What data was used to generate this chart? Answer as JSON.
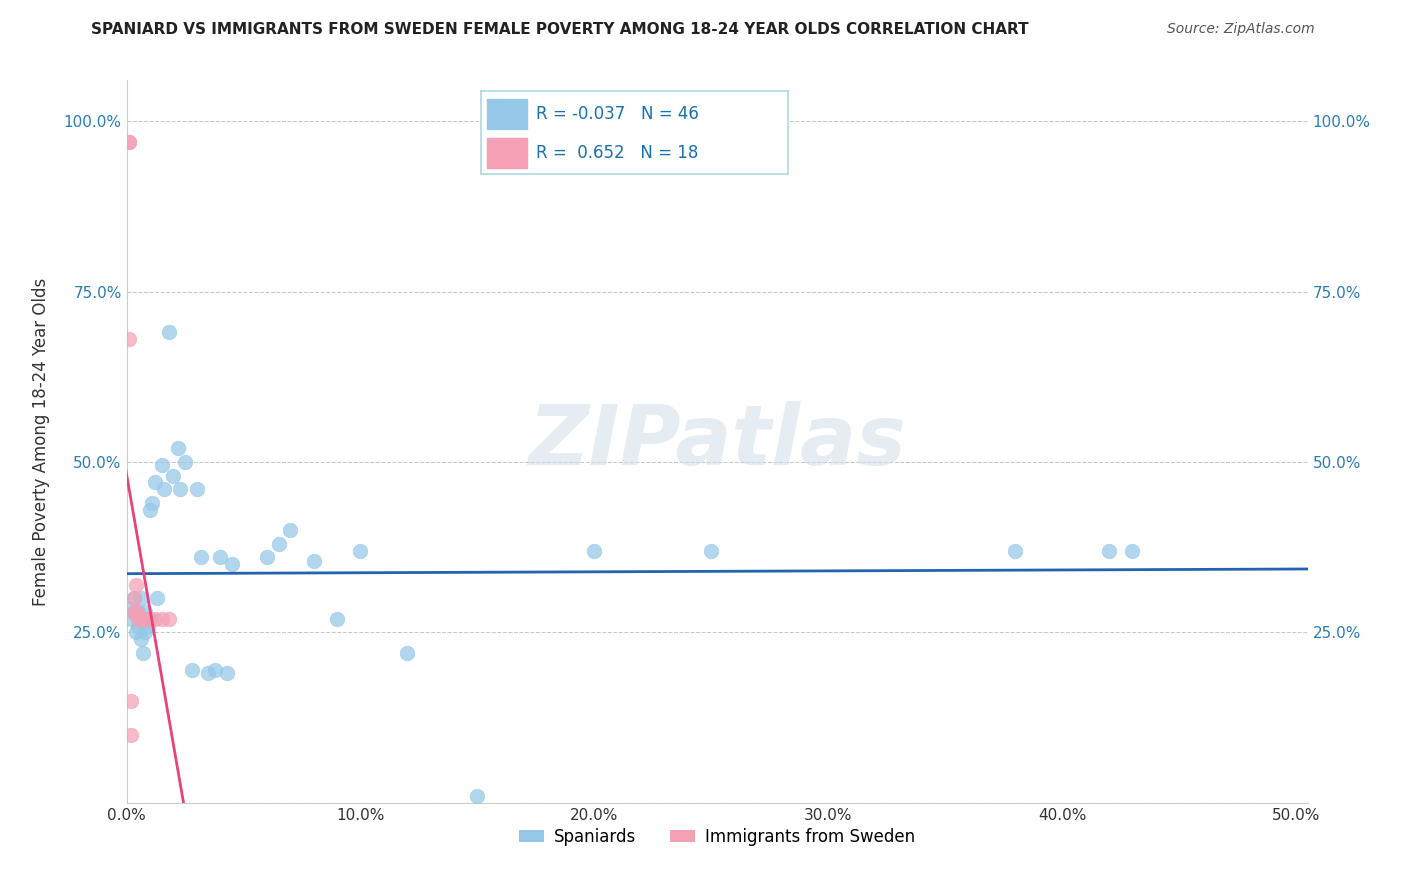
{
  "title": "SPANIARD VS IMMIGRANTS FROM SWEDEN FEMALE POVERTY AMONG 18-24 YEAR OLDS CORRELATION CHART",
  "source": "Source: ZipAtlas.com",
  "ylabel": "Female Poverty Among 18-24 Year Olds",
  "xlim": [
    0.0,
    0.505
  ],
  "ylim": [
    0.0,
    1.06
  ],
  "spaniards_x": [
    0.001,
    0.002,
    0.003,
    0.003,
    0.004,
    0.005,
    0.005,
    0.006,
    0.006,
    0.007,
    0.007,
    0.008,
    0.008,
    0.009,
    0.01,
    0.011,
    0.012,
    0.013,
    0.015,
    0.016,
    0.018,
    0.02,
    0.022,
    0.023,
    0.025,
    0.028,
    0.03,
    0.032,
    0.035,
    0.038,
    0.04,
    0.043,
    0.045,
    0.06,
    0.065,
    0.07,
    0.08,
    0.09,
    0.1,
    0.12,
    0.15,
    0.2,
    0.25,
    0.38,
    0.42,
    0.43
  ],
  "spaniards_y": [
    0.285,
    0.27,
    0.278,
    0.3,
    0.25,
    0.26,
    0.28,
    0.24,
    0.3,
    0.22,
    0.27,
    0.25,
    0.28,
    0.26,
    0.43,
    0.44,
    0.47,
    0.3,
    0.495,
    0.46,
    0.69,
    0.48,
    0.52,
    0.46,
    0.5,
    0.195,
    0.46,
    0.36,
    0.19,
    0.195,
    0.36,
    0.19,
    0.35,
    0.36,
    0.38,
    0.4,
    0.355,
    0.27,
    0.37,
    0.22,
    0.01,
    0.37,
    0.37,
    0.37,
    0.37,
    0.37
  ],
  "immigrants_x": [
    0.001,
    0.001,
    0.001,
    0.002,
    0.002,
    0.003,
    0.003,
    0.004,
    0.004,
    0.005,
    0.006,
    0.007,
    0.008,
    0.009,
    0.01,
    0.012,
    0.015,
    0.018
  ],
  "immigrants_y": [
    0.97,
    0.97,
    0.68,
    0.15,
    0.1,
    0.28,
    0.3,
    0.28,
    0.32,
    0.27,
    0.27,
    0.27,
    0.27,
    0.27,
    0.27,
    0.27,
    0.27,
    0.27
  ],
  "spaniards_color": "#94C7E8",
  "immigrants_color": "#F4A0B5",
  "spaniards_line_color": "#2463AE",
  "immigrants_line_color": "#E8437A",
  "r_spaniards": "-0.037",
  "n_spaniards": "46",
  "r_immigrants": "0.652",
  "n_immigrants": "18",
  "xtick_vals": [
    0.0,
    0.1,
    0.2,
    0.3,
    0.4,
    0.5
  ],
  "ytick_vals": [
    0.0,
    0.25,
    0.5,
    0.75,
    1.0
  ],
  "title_fontsize": 11,
  "source_fontsize": 10,
  "tick_fontsize": 11,
  "ylabel_fontsize": 12
}
